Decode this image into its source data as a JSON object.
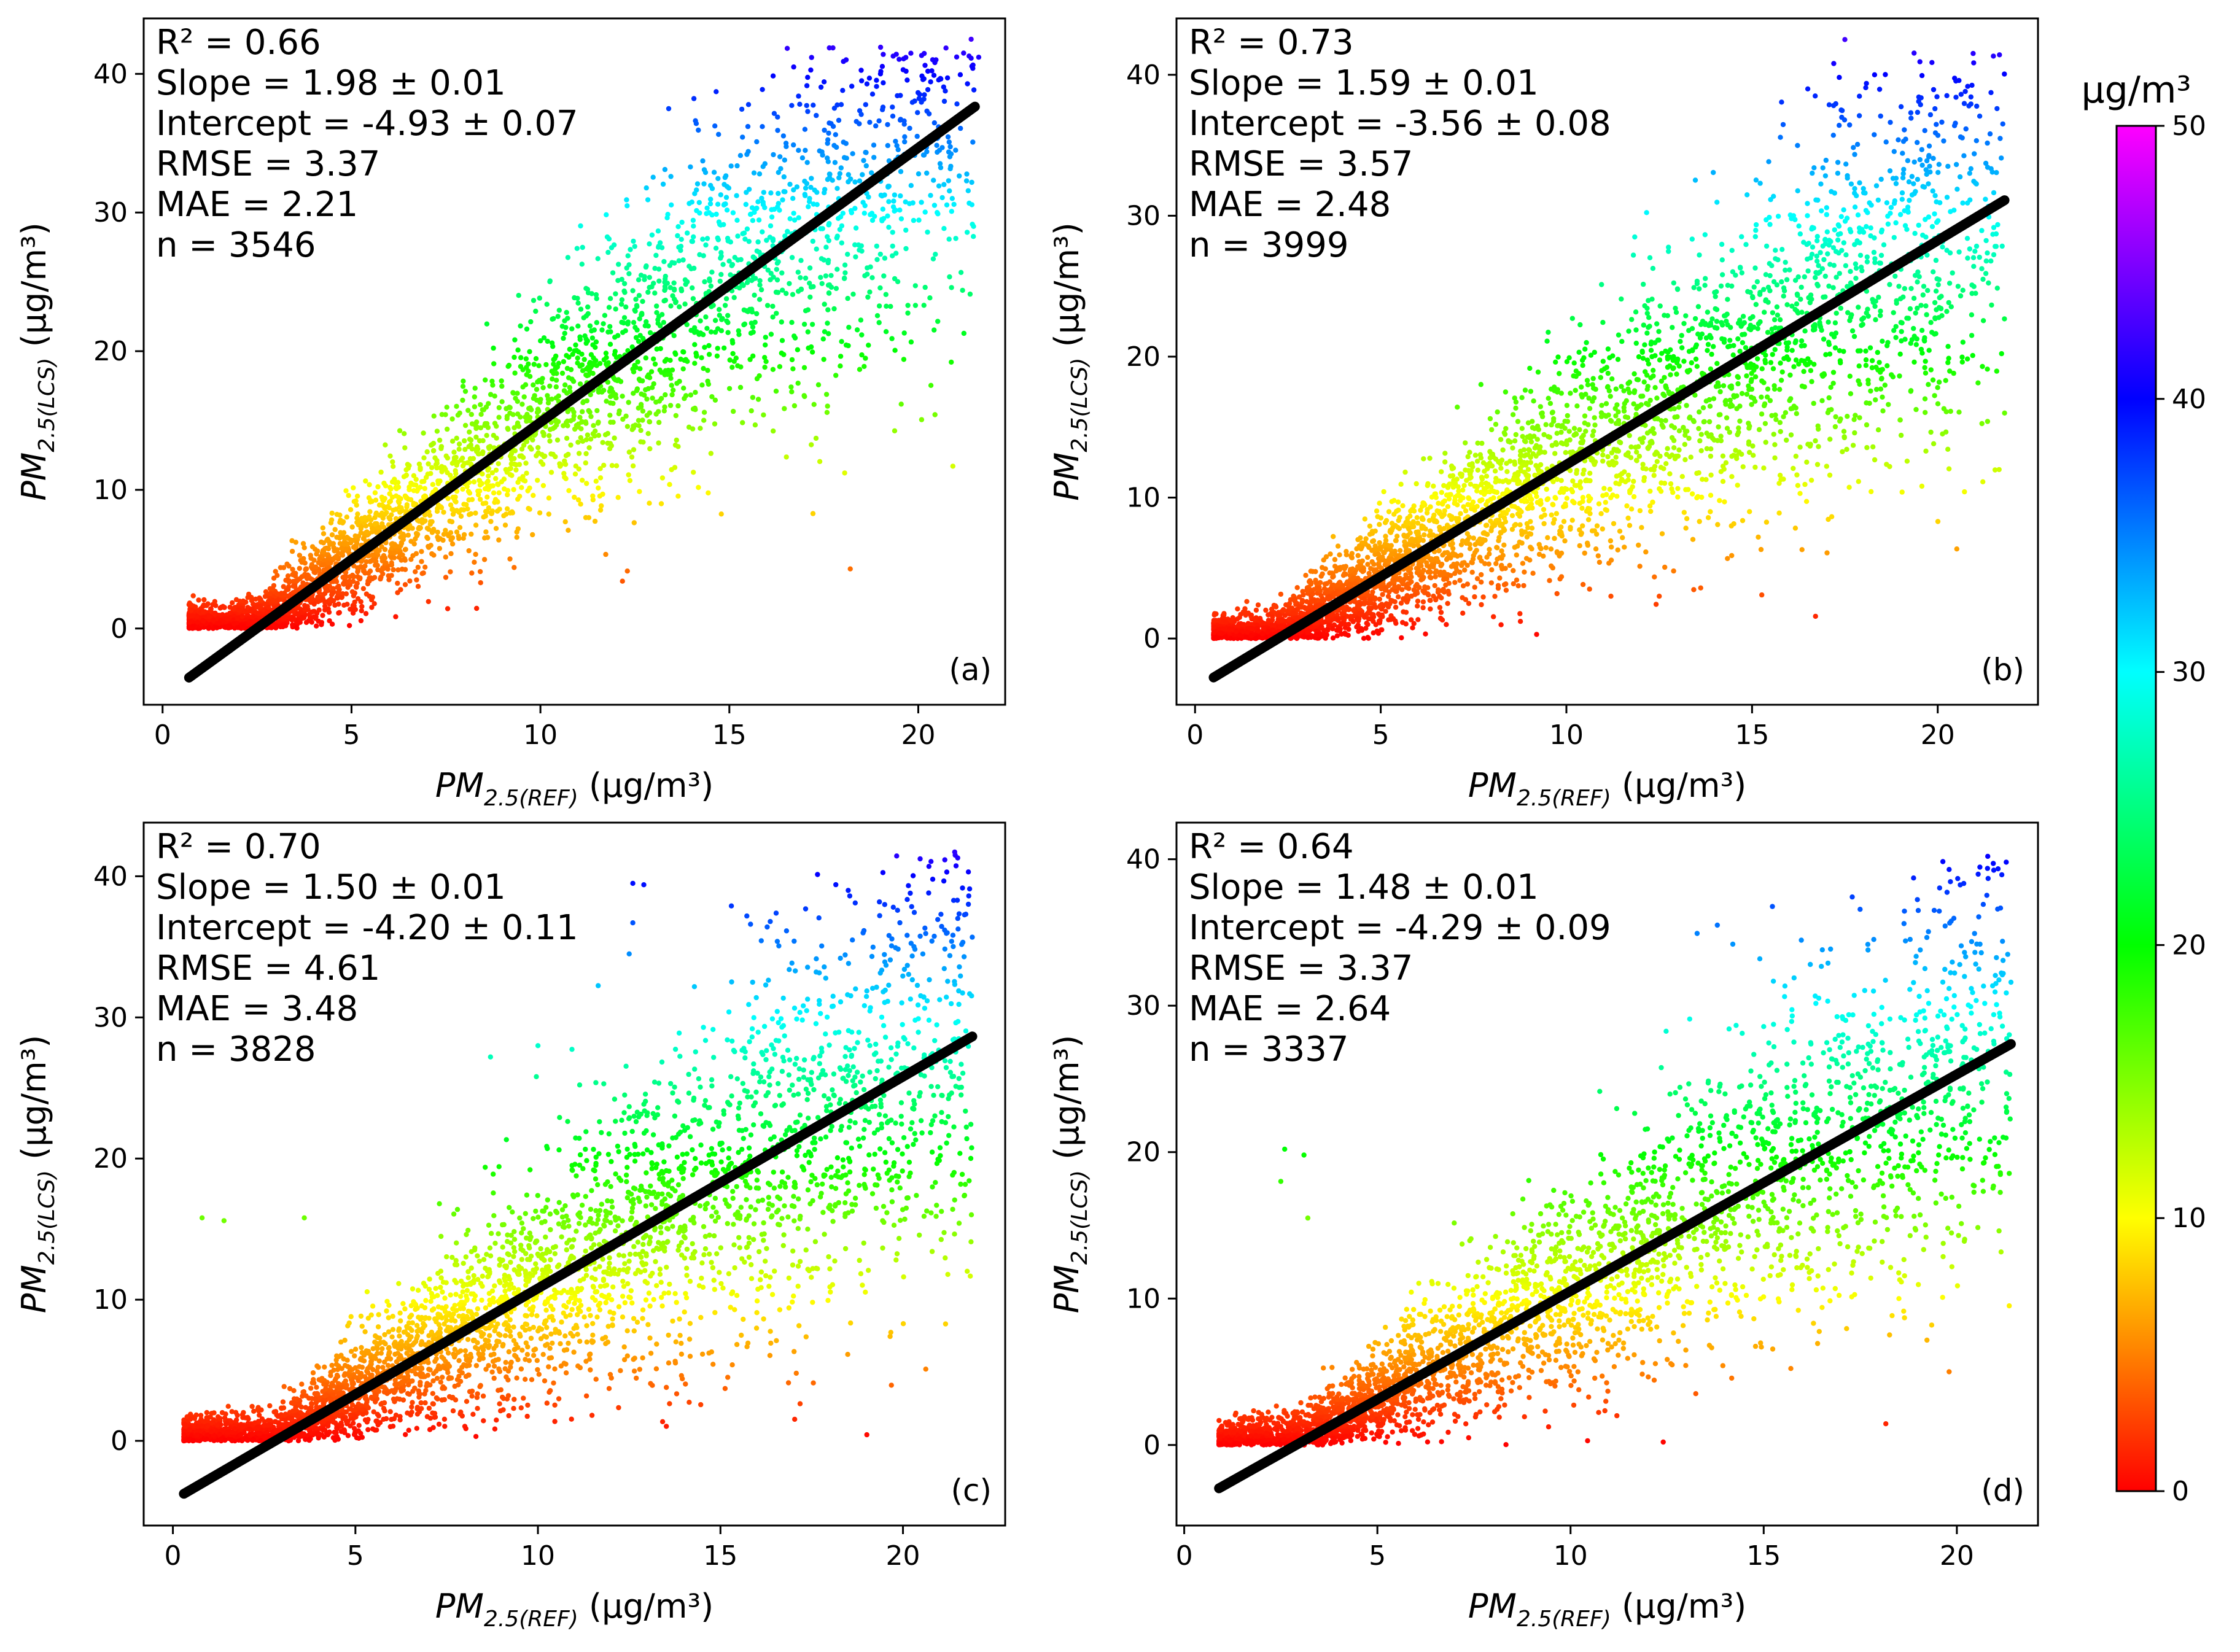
{
  "chart_data": [
    {
      "type": "scatter",
      "panel_label": "(a)",
      "xlabel": {
        "main": "PM",
        "sub": "2.5(REF)",
        "unit": " (µg/m³)"
      },
      "ylabel": {
        "main": "PM",
        "sub": "2.5(LCS)",
        "unit": " (µg/m³)"
      },
      "xlim": [
        -0.5,
        22.3
      ],
      "ylim": [
        -5.5,
        44
      ],
      "xticks": [
        0,
        5,
        10,
        15,
        20
      ],
      "yticks": [
        0,
        10,
        20,
        30,
        40
      ],
      "stats": [
        "R² = 0.66",
        "Slope = 1.98 ± 0.01",
        "Intercept = -4.93 ± 0.07",
        "RMSE = 3.37",
        "MAE = 2.21",
        "n = 3546"
      ],
      "fit": {
        "slope": 1.98,
        "intercept": -4.93,
        "x_range": [
          0.7,
          21.5
        ]
      },
      "scatter": {
        "n": 3546,
        "x_range": [
          0.7,
          21.5
        ],
        "y_min": 0,
        "spread": 0.18,
        "floor_x": 3.2
      },
      "outliers": [
        [
          21.2,
          41.5
        ],
        [
          21.6,
          41.2
        ],
        [
          21.4,
          42.5
        ],
        [
          18.5,
          39.5
        ],
        [
          19.0,
          40.0
        ],
        [
          19.6,
          40.3
        ],
        [
          17.3,
          37.0
        ],
        [
          17.0,
          36.0
        ],
        [
          16.5,
          35.0
        ],
        [
          15.5,
          34.4
        ],
        [
          20.5,
          30.0
        ],
        [
          18.2,
          4.3
        ],
        [
          13.2,
          9.0
        ],
        [
          11.2,
          8.0
        ]
      ]
    },
    {
      "type": "scatter",
      "panel_label": "(b)",
      "xlabel": {
        "main": "PM",
        "sub": "2.5(REF)",
        "unit": " (µg/m³)"
      },
      "ylabel": {
        "main": "PM",
        "sub": "2.5(LCS)",
        "unit": " (µg/m³)"
      },
      "xlim": [
        -0.5,
        22.7
      ],
      "ylim": [
        -4.7,
        44
      ],
      "xticks": [
        0,
        5,
        10,
        15,
        20
      ],
      "yticks": [
        0,
        10,
        20,
        30,
        40
      ],
      "stats": [
        "R² = 0.73",
        "Slope = 1.59 ± 0.01",
        "Intercept = -3.56 ± 0.08",
        "RMSE = 3.57",
        "MAE = 2.48",
        "n = 3999"
      ],
      "fit": {
        "slope": 1.59,
        "intercept": -3.56,
        "x_range": [
          0.5,
          21.8
        ]
      },
      "scatter": {
        "n": 3999,
        "x_range": [
          0.5,
          21.8
        ],
        "y_min": 0,
        "spread": 0.22,
        "floor_x": 3.0
      },
      "outliers": [
        [
          16.5,
          39.0
        ],
        [
          16.7,
          38.5
        ],
        [
          17.2,
          40.8
        ],
        [
          17.5,
          42.5
        ],
        [
          17.4,
          37.5
        ],
        [
          18.3,
          40.0
        ],
        [
          11.2,
          3.0
        ],
        [
          12.5,
          3.0
        ],
        [
          21.8,
          16.0
        ],
        [
          14.5,
          13.0
        ]
      ]
    },
    {
      "type": "scatter",
      "panel_label": "(c)",
      "xlabel": {
        "main": "PM",
        "sub": "2.5(REF)",
        "unit": " (µg/m³)"
      },
      "ylabel": {
        "main": "PM",
        "sub": "2.5(LCS)",
        "unit": " (µg/m³)"
      },
      "xlim": [
        -0.8,
        22.8
      ],
      "ylim": [
        -6,
        43.8
      ],
      "xticks": [
        0,
        5,
        10,
        15,
        20
      ],
      "yticks": [
        0,
        10,
        20,
        30,
        40
      ],
      "stats": [
        "R² = 0.70",
        "Slope = 1.50 ± 0.01",
        "Intercept = -4.20 ± 0.11",
        "RMSE = 4.61",
        "MAE = 3.48",
        "n = 3828"
      ],
      "fit": {
        "slope": 1.5,
        "intercept": -4.2,
        "x_range": [
          0.3,
          21.9
        ]
      },
      "scatter": {
        "n": 3828,
        "x_range": [
          0.3,
          21.9
        ],
        "y_min": 0,
        "spread": 0.26,
        "floor_x": 4.0
      },
      "outliers": [
        [
          12.6,
          39.5
        ],
        [
          12.9,
          39.4
        ],
        [
          12.6,
          36.7
        ],
        [
          12.5,
          34.5
        ],
        [
          15.3,
          37.9
        ],
        [
          18.5,
          39.0
        ],
        [
          19.5,
          38.0
        ],
        [
          21.5,
          41.3
        ],
        [
          21.2,
          40.3
        ],
        [
          20.2,
          38.8
        ],
        [
          0.8,
          15.8
        ],
        [
          1.4,
          15.6
        ],
        [
          3.6,
          15.8
        ],
        [
          8.7,
          27.2
        ],
        [
          10.0,
          28.0
        ],
        [
          15.2,
          4.5
        ]
      ]
    },
    {
      "type": "scatter",
      "panel_label": "(d)",
      "xlabel": {
        "main": "PM",
        "sub": "2.5(REF)",
        "unit": " (µg/m³)"
      },
      "ylabel": {
        "main": "PM",
        "sub": "2.5(LCS)",
        "unit": " (µg/m³)"
      },
      "xlim": [
        -0.2,
        22.1
      ],
      "ylim": [
        -5.5,
        42.5
      ],
      "xticks": [
        0,
        5,
        10,
        15,
        20
      ],
      "yticks": [
        0,
        10,
        20,
        30,
        40
      ],
      "stats": [
        "R² = 0.64",
        "Slope = 1.48 ± 0.01",
        "Intercept = -4.29 ± 0.09",
        "RMSE = 3.37",
        "MAE = 2.64",
        "n = 3337"
      ],
      "fit": {
        "slope": 1.48,
        "intercept": -4.29,
        "x_range": [
          0.9,
          21.4
        ]
      },
      "scatter": {
        "n": 3337,
        "x_range": [
          0.9,
          21.4
        ],
        "y_min": 0,
        "spread": 0.24,
        "floor_x": 3.0
      },
      "outliers": [
        [
          20.8,
          40.2
        ],
        [
          19.8,
          39.3
        ],
        [
          19.0,
          36.5
        ],
        [
          20.6,
          34.2
        ],
        [
          21.2,
          32.2
        ],
        [
          21.4,
          31.6
        ],
        [
          13.8,
          35.5
        ],
        [
          14.2,
          34.2
        ],
        [
          14.9,
          33.2
        ],
        [
          17.7,
          33.8
        ],
        [
          2.6,
          20.2
        ],
        [
          3.1,
          19.8
        ],
        [
          2.5,
          18.0
        ],
        [
          3.2,
          15.5
        ],
        [
          19.8,
          5.0
        ],
        [
          11.2,
          2.0
        ],
        [
          12.4,
          0.2
        ],
        [
          18.5,
          10.0
        ]
      ]
    },
    {
      "type": "colorbar",
      "title": "µg/m³",
      "range": [
        0,
        50
      ],
      "ticks": [
        0,
        10,
        20,
        30,
        40,
        50
      ],
      "colormap": [
        "#ff0000",
        "#ff8000",
        "#ffff00",
        "#80ff00",
        "#00ff00",
        "#00ff80",
        "#00ffff",
        "#0080ff",
        "#0000ff",
        "#8000ff",
        "#ff00ff"
      ]
    }
  ]
}
